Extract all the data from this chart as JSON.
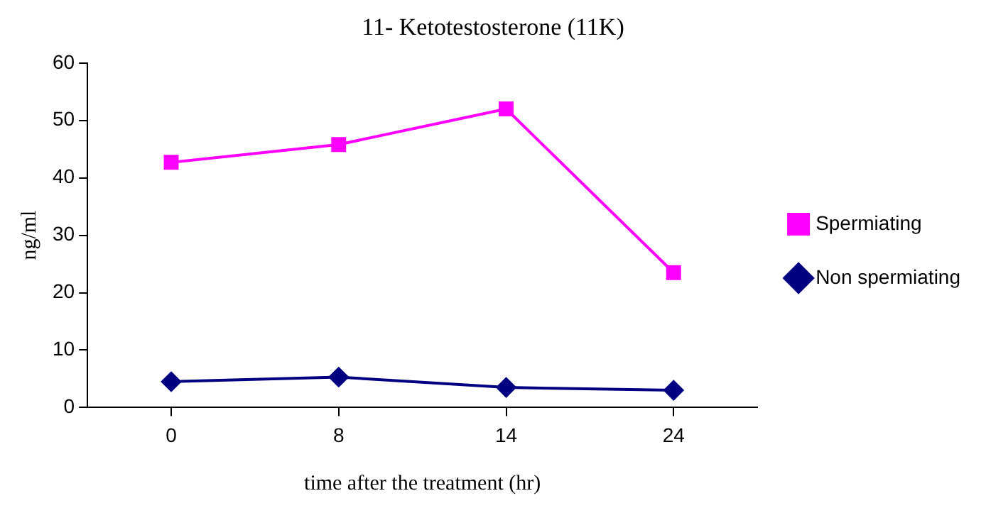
{
  "chart_data": {
    "type": "line",
    "title": "11- Ketotestosterone (11K)",
    "xlabel": "time after the treatment (hr)",
    "ylabel": "ng/ml",
    "categories": [
      "0",
      "8",
      "14",
      "24"
    ],
    "ylim": [
      0,
      60
    ],
    "yticks": [
      0,
      10,
      20,
      30,
      40,
      50,
      60
    ],
    "grid": false,
    "legend": "right",
    "line_style": "solid",
    "series": [
      {
        "name": "Spermiating",
        "color": "#ff00ff",
        "marker": "square",
        "values": [
          42.7,
          45.8,
          52,
          23.5
        ]
      },
      {
        "name": "Non spermiating",
        "color": "#000080",
        "marker": "diamond",
        "values": [
          4.5,
          5.3,
          3.5,
          3
        ]
      }
    ]
  }
}
